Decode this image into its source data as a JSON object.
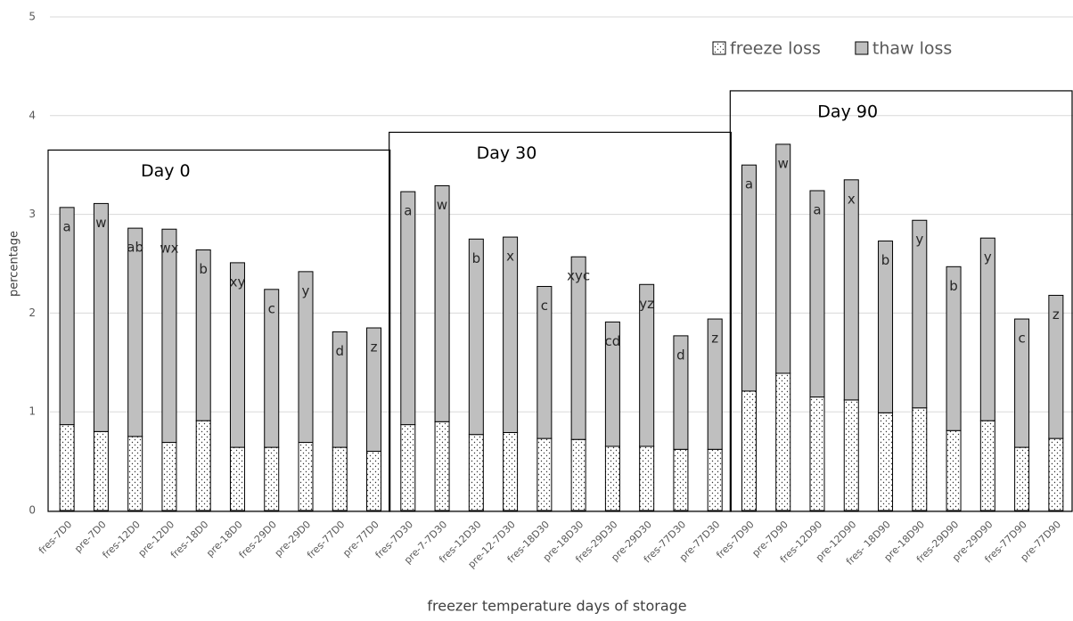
{
  "chart_data": {
    "type": "stacked_bar",
    "x_label": "freezer temperature  days of storage",
    "y_label": "percentage",
    "categories": [
      "fres-7D0",
      "pre-7D0",
      "fres-12D0",
      "pre-12D0",
      "fres-18D0",
      "pre-18D0",
      "fres-29D0",
      "pre-29D0",
      "fres-77D0",
      "pre-77D0",
      "fres-7D30",
      "pre-7-7D30",
      "fres-12D30",
      "pre-12-7D30",
      "fres-18D30",
      "pre-18D30",
      "fres-29D30",
      "pre-29D30",
      "fres-77D30",
      "pre-77D30",
      "fres-7D90",
      "pre-7D90",
      "fres-12D90",
      "pre-12D90",
      "fres- 18D90",
      "pre-18D90",
      "fres-29D90",
      "pre-29D90",
      "fres-77D90",
      "pre-77D90"
    ],
    "series": [
      {
        "name": "freeze loss",
        "color": "#ffffff",
        "values": [
          0.87,
          0.8,
          0.75,
          0.69,
          0.91,
          0.64,
          0.64,
          0.69,
          0.64,
          0.6,
          0.87,
          0.9,
          0.77,
          0.79,
          0.73,
          0.72,
          0.65,
          0.65,
          0.62,
          0.62,
          1.21,
          1.39,
          1.15,
          1.12,
          0.99,
          1.04,
          0.81,
          0.91,
          0.64,
          0.73
        ]
      },
      {
        "name": "thaw loss",
        "color": "#bfbfbf",
        "values": [
          2.2,
          2.31,
          2.11,
          2.16,
          1.73,
          1.87,
          1.6,
          1.73,
          1.17,
          1.25,
          2.36,
          2.39,
          1.98,
          1.98,
          1.54,
          1.85,
          1.26,
          1.64,
          1.15,
          1.32,
          2.29,
          2.32,
          2.09,
          2.23,
          1.74,
          1.9,
          1.66,
          1.85,
          1.3,
          1.45
        ]
      }
    ],
    "letters": [
      "a",
      "w",
      "ab",
      "wx",
      "b",
      "xy",
      "c",
      "y",
      "d",
      "z",
      "a",
      "w",
      "b",
      "x",
      "c",
      "xyc",
      "cd",
      "yz",
      "d",
      "z",
      "a",
      "w",
      "a",
      "x",
      "b",
      "y",
      "b",
      "y",
      "c",
      "z"
    ],
    "groups": [
      "Day 0",
      "Day 30",
      "Day 90"
    ],
    "ylim": [
      0,
      5
    ],
    "yticks": [
      0,
      1,
      2,
      3,
      4,
      5
    ],
    "grid": true,
    "legend": "top-right"
  }
}
